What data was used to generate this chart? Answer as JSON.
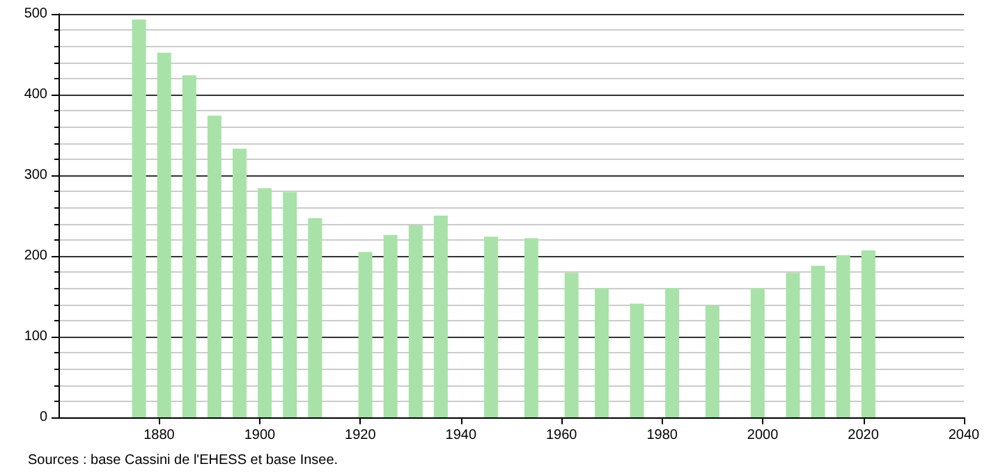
{
  "chart_data": {
    "type": "bar",
    "x": [
      1876,
      1881,
      1886,
      1891,
      1896,
      1901,
      1906,
      1911,
      1921,
      1926,
      1931,
      1936,
      1946,
      1954,
      1962,
      1968,
      1975,
      1982,
      1990,
      1999,
      2006,
      2011,
      2016,
      2021
    ],
    "values": [
      493,
      452,
      424,
      374,
      333,
      284,
      279,
      247,
      205,
      226,
      238,
      250,
      224,
      222,
      179,
      160,
      141,
      160,
      139,
      160,
      179,
      188,
      201,
      207
    ],
    "color": "#a8e2a8",
    "xlim": [
      1860,
      2040
    ],
    "xticks": [
      1880,
      1900,
      1920,
      1940,
      1960,
      1980,
      2000,
      2020,
      2040
    ],
    "ylim": [
      0,
      500
    ],
    "yticks": [
      0,
      100,
      200,
      300,
      400,
      500
    ],
    "grid": "y",
    "annotations": [
      "Sources : base Cassini de l'EHESS et base Insee."
    ]
  }
}
